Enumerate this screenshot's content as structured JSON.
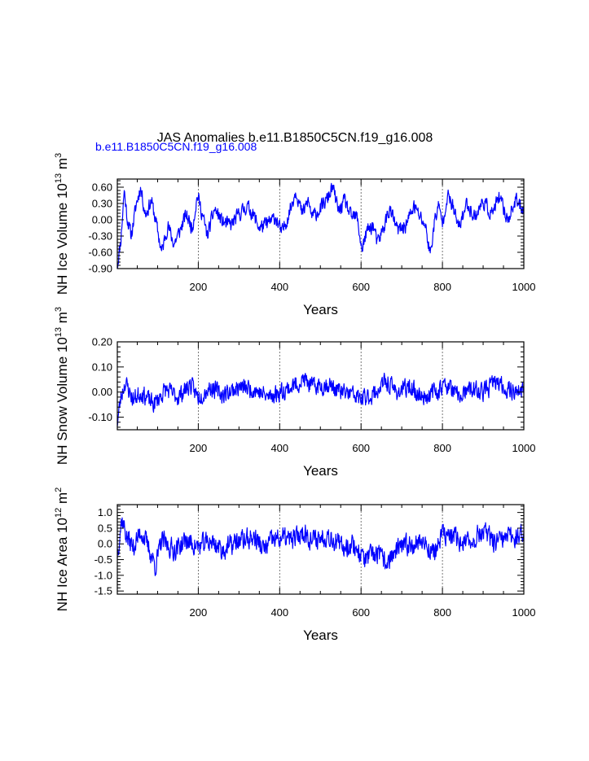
{
  "header": {
    "title": "JAS Anomalies b.e11.B1850C5CN.f19_g16.008",
    "subtitle": "b.e11.B1850C5CN.f19_g16.008"
  },
  "colors": {
    "series": "#0000ff",
    "axes": "#000000",
    "grid": "#555555",
    "subtitle": "#0000ff"
  },
  "chart_data": [
    {
      "type": "line",
      "id": "ice-volume",
      "ylabel_main": "NH Ice Volume 10",
      "ylabel_sup": "13",
      "ylabel_unit": " m",
      "ylabel_unit_sup": "3",
      "xlabel": "Years",
      "xlim": [
        1,
        1000
      ],
      "ylim": [
        -0.9,
        0.75
      ],
      "xticks": [
        200,
        400,
        600,
        800,
        1000
      ],
      "xtick_labels": [
        "200",
        "400",
        "600",
        "800",
        "1000"
      ],
      "yticks": [
        -0.9,
        -0.6,
        -0.3,
        0.0,
        0.3,
        0.6
      ],
      "ytick_labels": [
        "-0.90",
        "-0.60",
        "-0.30",
        "0.00",
        "0.30",
        "0.60"
      ],
      "grid_x": [
        200,
        400,
        600,
        800
      ],
      "series": [
        {
          "name": "NH Ice Volume",
          "knots": [
            [
              1,
              -0.85
            ],
            [
              10,
              -0.35
            ],
            [
              18,
              0.55
            ],
            [
              25,
              0.05
            ],
            [
              35,
              -0.3
            ],
            [
              48,
              0.3
            ],
            [
              58,
              0.6
            ],
            [
              70,
              0.1
            ],
            [
              85,
              0.35
            ],
            [
              100,
              -0.2
            ],
            [
              110,
              -0.6
            ],
            [
              125,
              -0.1
            ],
            [
              140,
              -0.45
            ],
            [
              155,
              -0.2
            ],
            [
              170,
              0.1
            ],
            [
              185,
              -0.15
            ],
            [
              198,
              0.45
            ],
            [
              210,
              0.1
            ],
            [
              222,
              -0.3
            ],
            [
              240,
              0.2
            ],
            [
              260,
              -0.05
            ],
            [
              280,
              -0.1
            ],
            [
              300,
              0.1
            ],
            [
              320,
              0.25
            ],
            [
              335,
              0.1
            ],
            [
              350,
              -0.15
            ],
            [
              375,
              -0.05
            ],
            [
              390,
              0.05
            ],
            [
              405,
              -0.25
            ],
            [
              420,
              0.05
            ],
            [
              440,
              0.55
            ],
            [
              455,
              0.1
            ],
            [
              470,
              0.35
            ],
            [
              480,
              0.05
            ],
            [
              500,
              0.2
            ],
            [
              515,
              0.35
            ],
            [
              530,
              0.6
            ],
            [
              545,
              0.15
            ],
            [
              560,
              0.35
            ],
            [
              575,
              0.05
            ],
            [
              590,
              0.05
            ],
            [
              602,
              -0.55
            ],
            [
              615,
              -0.2
            ],
            [
              630,
              -0.1
            ],
            [
              640,
              -0.45
            ],
            [
              655,
              -0.15
            ],
            [
              670,
              0.2
            ],
            [
              690,
              -0.2
            ],
            [
              710,
              -0.1
            ],
            [
              730,
              0.25
            ],
            [
              745,
              0.05
            ],
            [
              758,
              -0.1
            ],
            [
              770,
              -0.65
            ],
            [
              780,
              -0.05
            ],
            [
              790,
              0.25
            ],
            [
              800,
              -0.05
            ],
            [
              812,
              0.45
            ],
            [
              825,
              0.25
            ],
            [
              840,
              -0.15
            ],
            [
              860,
              0.3
            ],
            [
              880,
              0.05
            ],
            [
              900,
              0.35
            ],
            [
              920,
              0.1
            ],
            [
              940,
              0.4
            ],
            [
              960,
              0.0
            ],
            [
              980,
              0.35
            ],
            [
              1000,
              0.2
            ]
          ],
          "noise": 0.12,
          "seed": 11,
          "step": 1
        }
      ]
    },
    {
      "type": "line",
      "id": "snow-volume",
      "ylabel_main": "NH Snow Volume 10",
      "ylabel_sup": "13",
      "ylabel_unit": " m",
      "ylabel_unit_sup": "3",
      "xlabel": "Years",
      "xlim": [
        1,
        1000
      ],
      "ylim": [
        -0.15,
        0.2
      ],
      "xticks": [
        200,
        400,
        600,
        800,
        1000
      ],
      "xtick_labels": [
        "200",
        "400",
        "600",
        "800",
        "1000"
      ],
      "yticks": [
        -0.1,
        0.0,
        0.1,
        0.2
      ],
      "ytick_labels": [
        "-0.10",
        "0.00",
        "0.10",
        "0.20"
      ],
      "grid_x": [
        200,
        400,
        600,
        800
      ],
      "series": [
        {
          "name": "NH Snow Volume",
          "knots": [
            [
              1,
              -0.12
            ],
            [
              10,
              -0.02
            ],
            [
              20,
              0.04
            ],
            [
              40,
              -0.03
            ],
            [
              60,
              0.0
            ],
            [
              90,
              -0.05
            ],
            [
              120,
              0.01
            ],
            [
              150,
              -0.02
            ],
            [
              180,
              0.03
            ],
            [
              200,
              -0.02
            ],
            [
              230,
              0.02
            ],
            [
              260,
              -0.01
            ],
            [
              300,
              0.02
            ],
            [
              340,
              0.01
            ],
            [
              370,
              -0.02
            ],
            [
              400,
              0.0
            ],
            [
              430,
              0.02
            ],
            [
              460,
              0.05
            ],
            [
              480,
              0.02
            ],
            [
              520,
              0.03
            ],
            [
              550,
              0.0
            ],
            [
              580,
              -0.01
            ],
            [
              600,
              -0.03
            ],
            [
              630,
              -0.01
            ],
            [
              660,
              0.04
            ],
            [
              690,
              0.0
            ],
            [
              720,
              0.02
            ],
            [
              750,
              -0.02
            ],
            [
              780,
              0.0
            ],
            [
              810,
              0.03
            ],
            [
              840,
              -0.02
            ],
            [
              870,
              0.01
            ],
            [
              900,
              0.0
            ],
            [
              930,
              0.04
            ],
            [
              960,
              0.01
            ],
            [
              1000,
              0.0
            ]
          ],
          "noise": 0.032,
          "seed": 23,
          "step": 1
        }
      ]
    },
    {
      "type": "line",
      "id": "ice-area",
      "ylabel_main": "NH Ice Area 10",
      "ylabel_sup": "12",
      "ylabel_unit": " m",
      "ylabel_unit_sup": "2",
      "xlabel": "Years",
      "xlim": [
        1,
        1000
      ],
      "ylim": [
        -1.6,
        1.25
      ],
      "xticks": [
        200,
        400,
        600,
        800,
        1000
      ],
      "xtick_labels": [
        "200",
        "400",
        "600",
        "800",
        "1000"
      ],
      "yticks": [
        -1.5,
        -1.0,
        -0.5,
        0.0,
        0.5,
        1.0
      ],
      "ytick_labels": [
        "-1.5",
        "-1.0",
        "-0.5",
        "0.0",
        "0.5",
        "1.0"
      ],
      "grid_x": [
        200,
        400,
        600,
        800
      ],
      "series": [
        {
          "name": "NH Ice Area",
          "knots": [
            [
              1,
              -0.3
            ],
            [
              12,
              0.8
            ],
            [
              25,
              0.2
            ],
            [
              40,
              -0.1
            ],
            [
              60,
              0.4
            ],
            [
              80,
              -0.2
            ],
            [
              95,
              -0.7
            ],
            [
              110,
              0.1
            ],
            [
              140,
              -0.2
            ],
            [
              170,
              0.1
            ],
            [
              200,
              -0.1
            ],
            [
              230,
              0.1
            ],
            [
              260,
              -0.2
            ],
            [
              300,
              0.1
            ],
            [
              340,
              0.2
            ],
            [
              360,
              -0.2
            ],
            [
              380,
              0.1
            ],
            [
              410,
              0.2
            ],
            [
              430,
              0.1
            ],
            [
              460,
              0.4
            ],
            [
              480,
              0.1
            ],
            [
              520,
              0.3
            ],
            [
              550,
              -0.1
            ],
            [
              580,
              0.0
            ],
            [
              610,
              -0.5
            ],
            [
              640,
              -0.3
            ],
            [
              660,
              -0.6
            ],
            [
              690,
              -0.2
            ],
            [
              720,
              0.0
            ],
            [
              750,
              0.1
            ],
            [
              780,
              -0.3
            ],
            [
              800,
              0.3
            ],
            [
              830,
              0.2
            ],
            [
              860,
              0.0
            ],
            [
              900,
              0.4
            ],
            [
              930,
              0.0
            ],
            [
              960,
              0.2
            ],
            [
              1000,
              0.3
            ]
          ],
          "noise": 0.3,
          "seed": 37,
          "step": 1
        }
      ]
    }
  ]
}
